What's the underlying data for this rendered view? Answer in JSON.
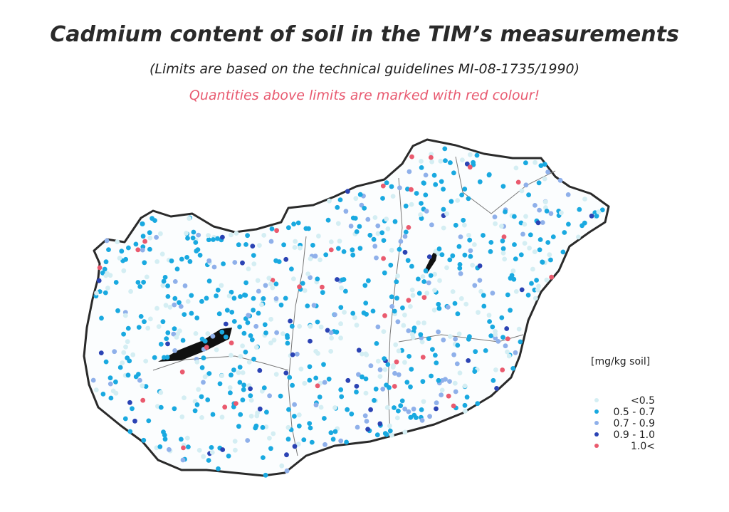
{
  "header": {
    "title": "Cadmium content of soil in the TIM’s measurements",
    "subtitle": "(Limits are based on the technical guidelines MI-08-1735/1990)",
    "note": "Quantities above limits are marked with red colour!"
  },
  "legend": {
    "title": "[mg/kg soil]",
    "items": [
      {
        "label": "<0.5",
        "color": "#d4eef3"
      },
      {
        "label": "0.5 - 0.7",
        "color": "#19a9e0"
      },
      {
        "label": "0.7 - 0.9",
        "color": "#8fb0ea"
      },
      {
        "label": "0.9 - 1.0",
        "color": "#2b43b4"
      },
      {
        "label": "1.0<",
        "color": "#ea5a6e"
      }
    ]
  }
}
